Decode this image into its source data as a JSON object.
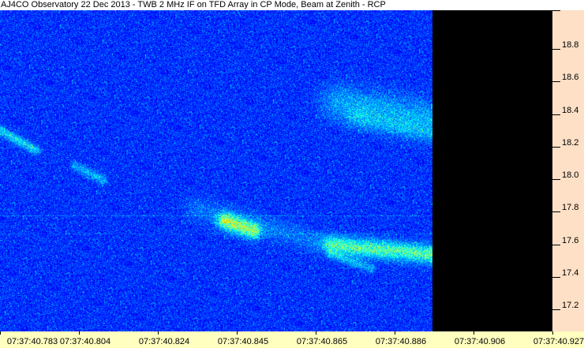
{
  "title": "AJ4CO Observatory 22 Dec 2013 - TWB 2 MHz IF on TFD Array in CP Mode, Beam at Zenith - RCP",
  "y_axis": {
    "ticks": [
      "18.8",
      "18.6",
      "18.4",
      "18.2",
      "18.0",
      "17.8",
      "17.6",
      "17.4",
      "17.2"
    ]
  },
  "x_axis": {
    "ticks": [
      "07:37:40.783",
      "07:37:40.804",
      "07:37:40.824",
      "07:37:40.845",
      "07:37:40.865",
      "07:37:40.886",
      "07:37:40.906",
      "07:37:40.927"
    ]
  },
  "colors": {
    "background_noise": "#0a2aa8",
    "y_axis_bg": "#fde0c6",
    "x_axis_bg": "#ffffc0",
    "empty_region": "#000000"
  }
}
